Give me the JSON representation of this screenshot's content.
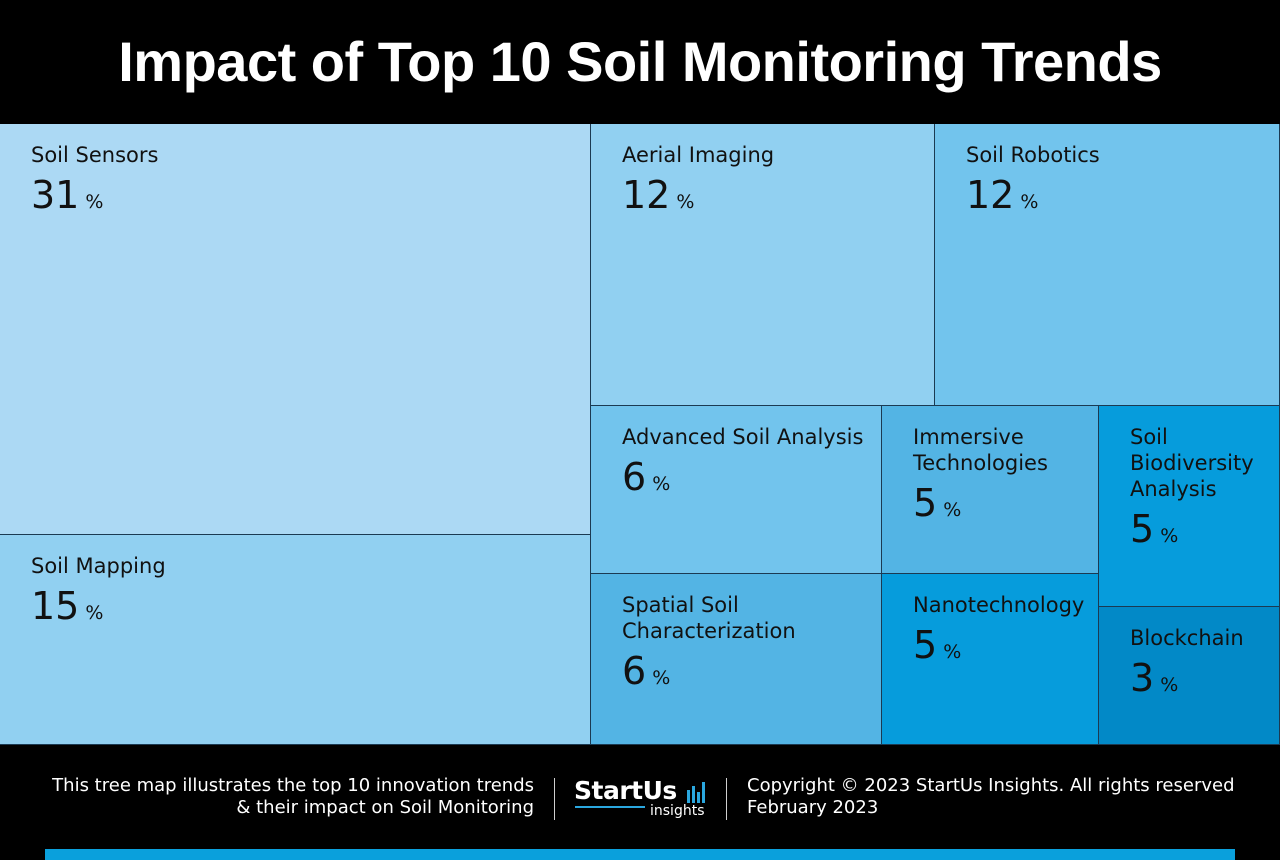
{
  "title": "Impact of Top 10 Soil Monitoring Trends",
  "colors": {
    "tile_lightest": "#acd9f4",
    "tile_light": "#91d0f1",
    "tile_mid": "#72c4ed",
    "tile_deep": "#53b4e4",
    "tile_deeper": "#069cdc",
    "tile_darkest": "#0289c7",
    "accent": "#0aa0dc"
  },
  "chart_data": {
    "type": "treemap",
    "unit": "%",
    "items": [
      {
        "label": "Soil Sensors",
        "value": 31
      },
      {
        "label": "Soil Mapping",
        "value": 15
      },
      {
        "label": "Aerial Imaging",
        "value": 12
      },
      {
        "label": "Soil Robotics",
        "value": 12
      },
      {
        "label": "Advanced Soil Analysis",
        "value": 6
      },
      {
        "label": "Spatial Soil Characterization",
        "value": 6
      },
      {
        "label": "Immersive Technologies",
        "value": 5
      },
      {
        "label": "Nanotechnology",
        "value": 5
      },
      {
        "label": "Soil Biodiversity Analysis",
        "value": 5
      },
      {
        "label": "Blockchain",
        "value": 3
      }
    ]
  },
  "footer": {
    "description_line1": "This tree map illustrates the top 10 innovation trends",
    "description_line2": "& their impact on Soil Monitoring",
    "logo_main": "StartUs",
    "logo_sub": "insights",
    "copyright": "Copyright © 2023 StartUs Insights. All rights reserved",
    "date": "February 2023"
  }
}
